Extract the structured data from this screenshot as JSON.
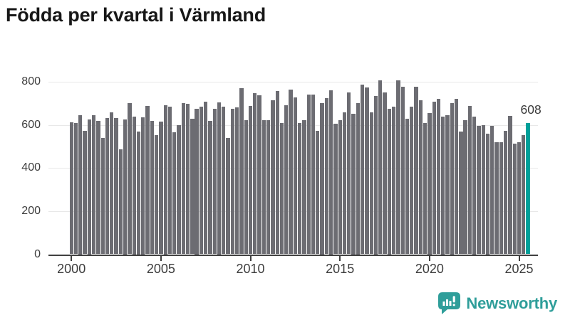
{
  "title": "Födda per kvartal i Värmland",
  "branding": {
    "name": "Newsworthy"
  },
  "colors": {
    "bar": "#6c6c72",
    "highlight": "#00a09a",
    "brand": "#2f9e9a",
    "gridline": "#e8e8e8",
    "axis": "#404040",
    "axis_text": "#3d3d3d",
    "title_text": "#171717"
  },
  "chart_data": {
    "type": "bar",
    "title": "Födda per kvartal i Värmland",
    "xlabel": "",
    "ylabel": "",
    "ylim": [
      0,
      800
    ],
    "y_ticks": [
      0,
      200,
      400,
      600,
      800
    ],
    "x_tick_labels": [
      "2000",
      "2005",
      "2010",
      "2015",
      "2020",
      "2025"
    ],
    "grid": "horizontal",
    "legend": "none",
    "unit": "födda per kvartal",
    "highlight": {
      "index": 102,
      "label": "608",
      "category": "2025 Q3"
    },
    "years": [
      {
        "year": 2000,
        "values": [
          611,
          608,
          645,
          574
        ]
      },
      {
        "year": 2001,
        "values": [
          625,
          644,
          617,
          539
        ]
      },
      {
        "year": 2002,
        "values": [
          631,
          659,
          633,
          486
        ]
      },
      {
        "year": 2003,
        "values": [
          625,
          702,
          640,
          570
        ]
      },
      {
        "year": 2004,
        "values": [
          635,
          687,
          618,
          554
        ]
      },
      {
        "year": 2005,
        "values": [
          614,
          690,
          686,
          567
        ]
      },
      {
        "year": 2006,
        "values": [
          598,
          702,
          697,
          629
        ]
      },
      {
        "year": 2007,
        "values": [
          675,
          686,
          708,
          618
        ]
      },
      {
        "year": 2008,
        "values": [
          673,
          705,
          684,
          541
        ]
      },
      {
        "year": 2009,
        "values": [
          673,
          681,
          769,
          623
        ]
      },
      {
        "year": 2010,
        "values": [
          689,
          746,
          736,
          623
        ]
      },
      {
        "year": 2011,
        "values": [
          623,
          714,
          758,
          609
        ]
      },
      {
        "year": 2012,
        "values": [
          691,
          763,
          727,
          609
        ]
      },
      {
        "year": 2013,
        "values": [
          621,
          741,
          741,
          572
        ]
      },
      {
        "year": 2014,
        "values": [
          700,
          724,
          760,
          607
        ]
      },
      {
        "year": 2015,
        "values": [
          623,
          659,
          749,
          650
        ]
      },
      {
        "year": 2016,
        "values": [
          700,
          788,
          773,
          659
        ]
      },
      {
        "year": 2017,
        "values": [
          735,
          806,
          752,
          675
        ]
      },
      {
        "year": 2018,
        "values": [
          683,
          806,
          777,
          629
        ]
      },
      {
        "year": 2019,
        "values": [
          686,
          778,
          714,
          609
        ]
      },
      {
        "year": 2020,
        "values": [
          655,
          708,
          721,
          640
        ]
      },
      {
        "year": 2021,
        "values": [
          646,
          700,
          722,
          568
        ]
      },
      {
        "year": 2022,
        "values": [
          623,
          689,
          640,
          594
        ]
      },
      {
        "year": 2023,
        "values": [
          598,
          560,
          596,
          519
        ]
      },
      {
        "year": 2024,
        "values": [
          521,
          571,
          643,
          513
        ]
      },
      {
        "year": 2025,
        "values": [
          519,
          554,
          608
        ]
      }
    ]
  }
}
